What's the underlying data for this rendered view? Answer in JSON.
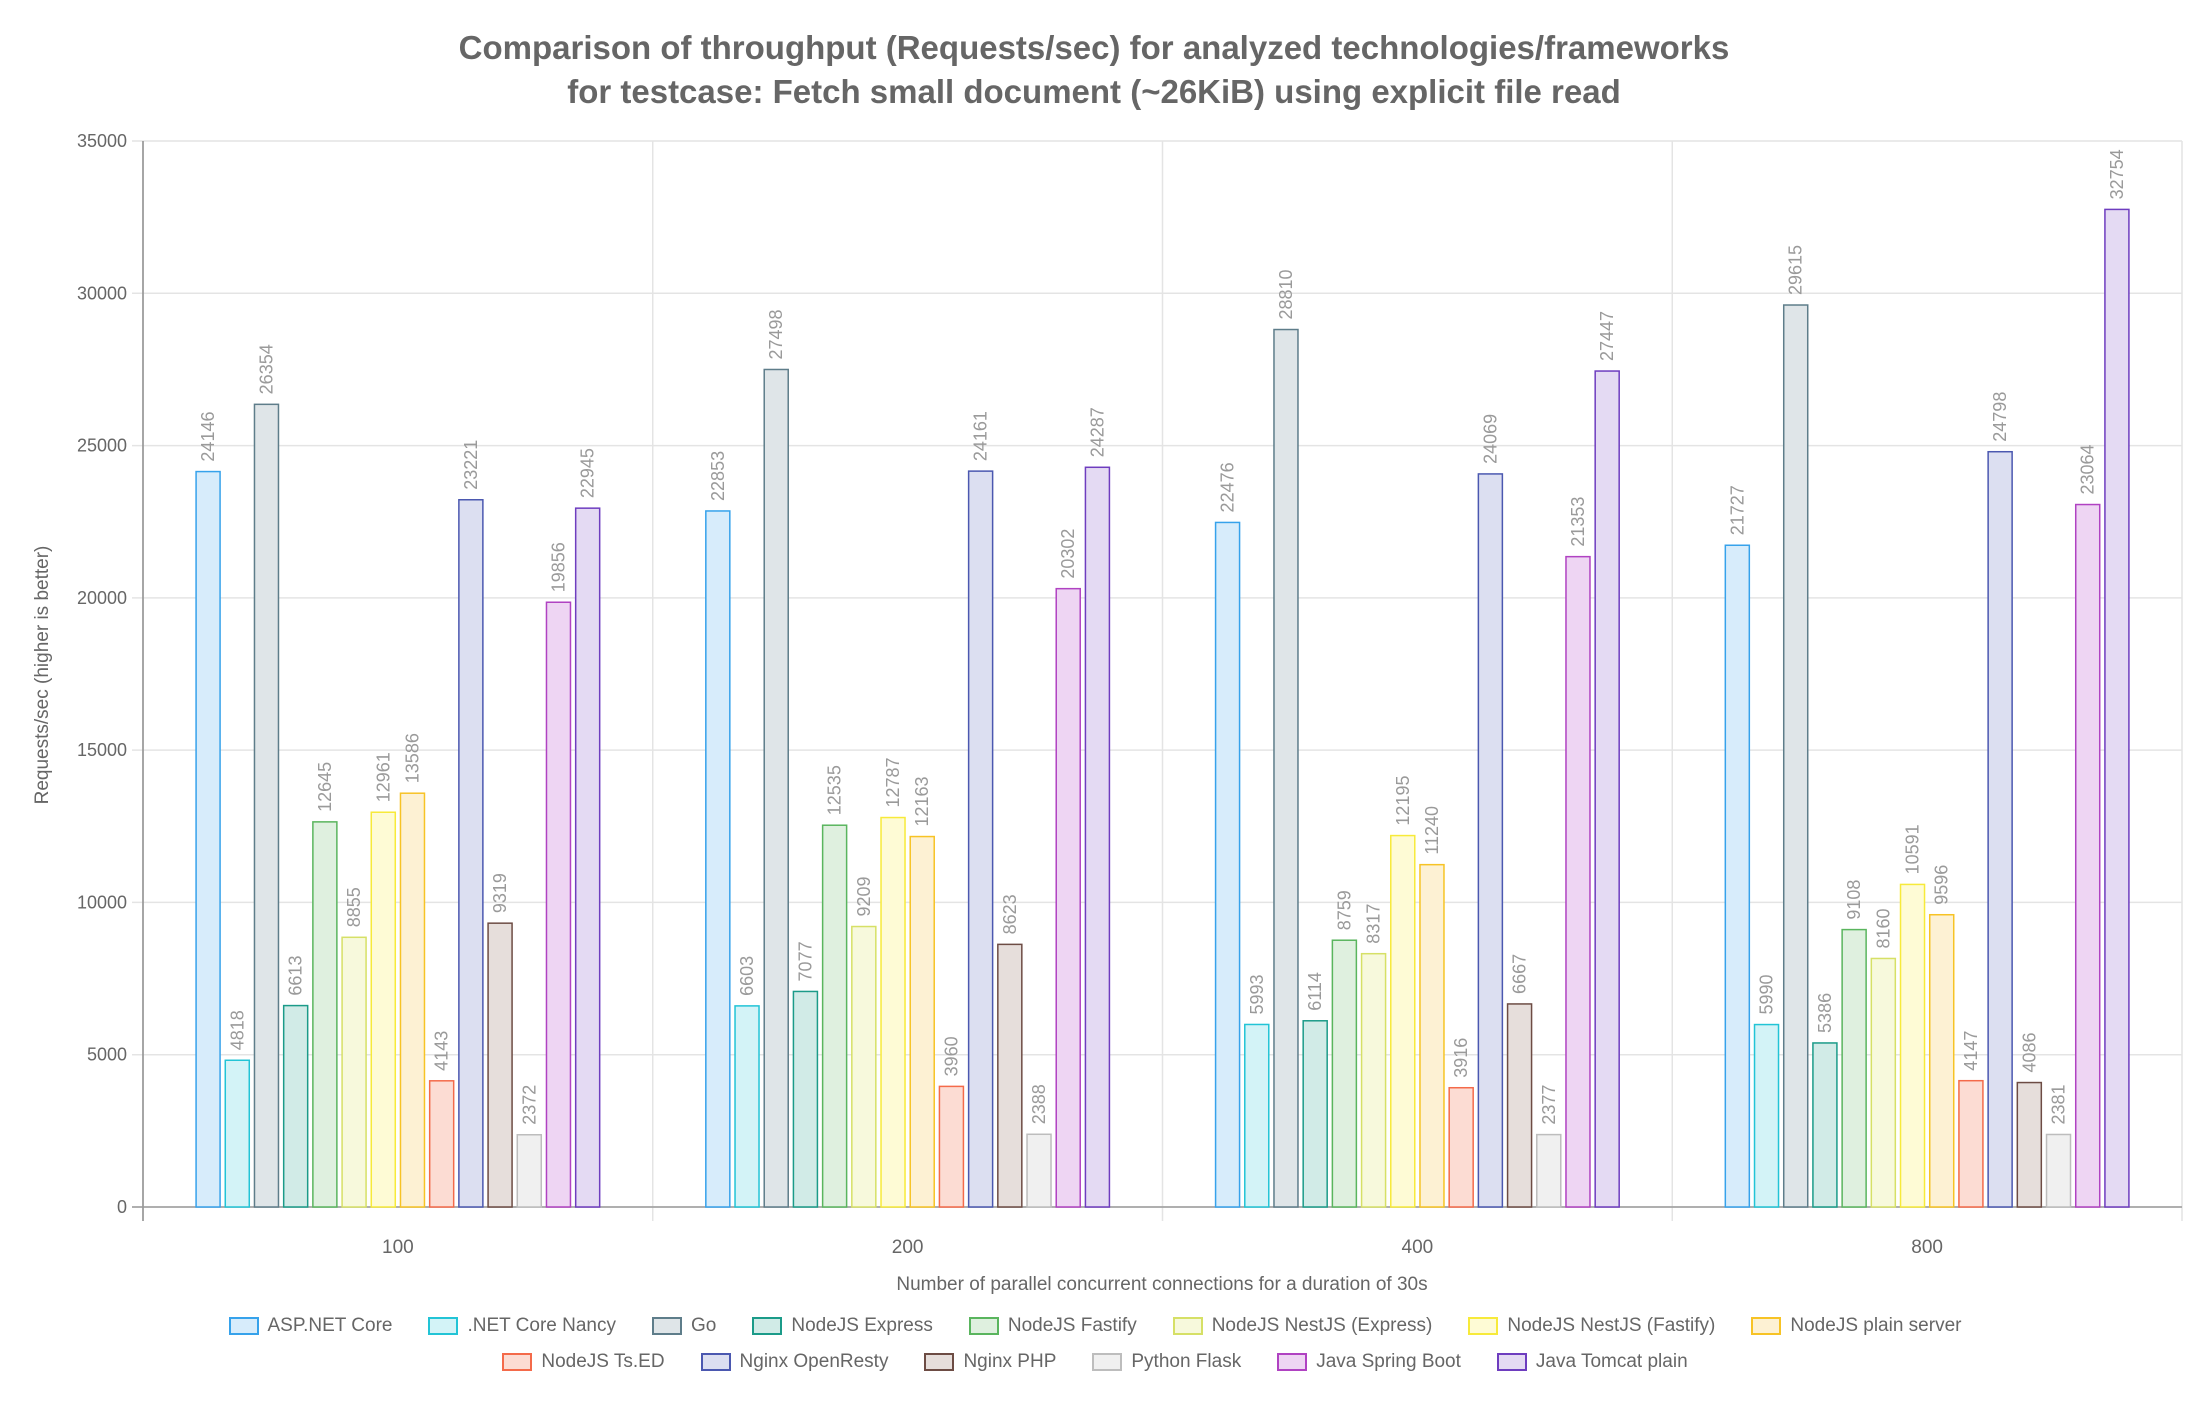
{
  "chart_data": {
    "type": "bar",
    "title_lines": [
      "Comparison of throughput (Requests/sec) for analyzed technologies/frameworks",
      "for testcase: Fetch small document (~26KiB) using explicit file read"
    ],
    "xlabel": "Number of parallel concurrent connections for a duration of 30s",
    "ylabel": "Requests/sec (higher is better)",
    "ylim": [
      0,
      35000
    ],
    "y_ticks": [
      "0",
      "5000",
      "10000",
      "15000",
      "20000",
      "25000",
      "30000",
      "35000"
    ],
    "grid": true,
    "legend_position": "bottom",
    "data_labels": true,
    "categories": [
      "100",
      "200",
      "400",
      "800"
    ],
    "series": [
      {
        "name": "ASP.NET Core",
        "border": "#36a2eb",
        "fill": "#d7ecfb",
        "values": [
          24146,
          22853,
          22476,
          21727
        ]
      },
      {
        "name": ".NET Core Nancy",
        "border": "#22c4d6",
        "fill": "#d3f3f7",
        "values": [
          4818,
          6603,
          5993,
          5990
        ]
      },
      {
        "name": "Go",
        "border": "#5e7d8a",
        "fill": "#dfe5e8",
        "values": [
          26354,
          27498,
          28810,
          29615
        ]
      },
      {
        "name": "NodeJS Express",
        "border": "#1b9b89",
        "fill": "#d1ebe7",
        "values": [
          6613,
          7077,
          6114,
          5386
        ]
      },
      {
        "name": "NodeJS Fastify",
        "border": "#5ab55e",
        "fill": "#dff0df",
        "values": [
          12645,
          12535,
          8759,
          9108
        ]
      },
      {
        "name": "NodeJS NestJS (Express)",
        "border": "#d6e066",
        "fill": "#f7f9dc",
        "values": [
          8855,
          9209,
          8317,
          8160
        ]
      },
      {
        "name": "NodeJS NestJS (Fastify)",
        "border": "#f7ea3a",
        "fill": "#fefbd5",
        "values": [
          12961,
          12787,
          12195,
          10591
        ]
      },
      {
        "name": "NodeJS plain server",
        "border": "#f7c325",
        "fill": "#fdf1d3",
        "values": [
          13586,
          12163,
          11240,
          9596
        ]
      },
      {
        "name": "NodeJS Ts.ED",
        "border": "#f46a4a",
        "fill": "#fcdcd3",
        "values": [
          4143,
          3960,
          3916,
          4147
        ]
      },
      {
        "name": "Nginx OpenResty",
        "border": "#4b58b0",
        "fill": "#dcdff1",
        "values": [
          23221,
          24161,
          24069,
          24798
        ]
      },
      {
        "name": "Nginx PHP",
        "border": "#6d4c44",
        "fill": "#e6dedb",
        "values": [
          9319,
          8623,
          6667,
          4086
        ]
      },
      {
        "name": "Python Flask",
        "border": "#bdbdbd",
        "fill": "#f0f0f0",
        "values": [
          2372,
          2388,
          2377,
          2381
        ]
      },
      {
        "name": "Java Spring Boot",
        "border": "#b042c2",
        "fill": "#eed5f3",
        "values": [
          19856,
          20302,
          21353,
          23064
        ]
      },
      {
        "name": "Java Tomcat plain",
        "border": "#6e3dbf",
        "fill": "#e4daf3",
        "values": [
          22945,
          24287,
          27447,
          32754
        ]
      }
    ]
  }
}
